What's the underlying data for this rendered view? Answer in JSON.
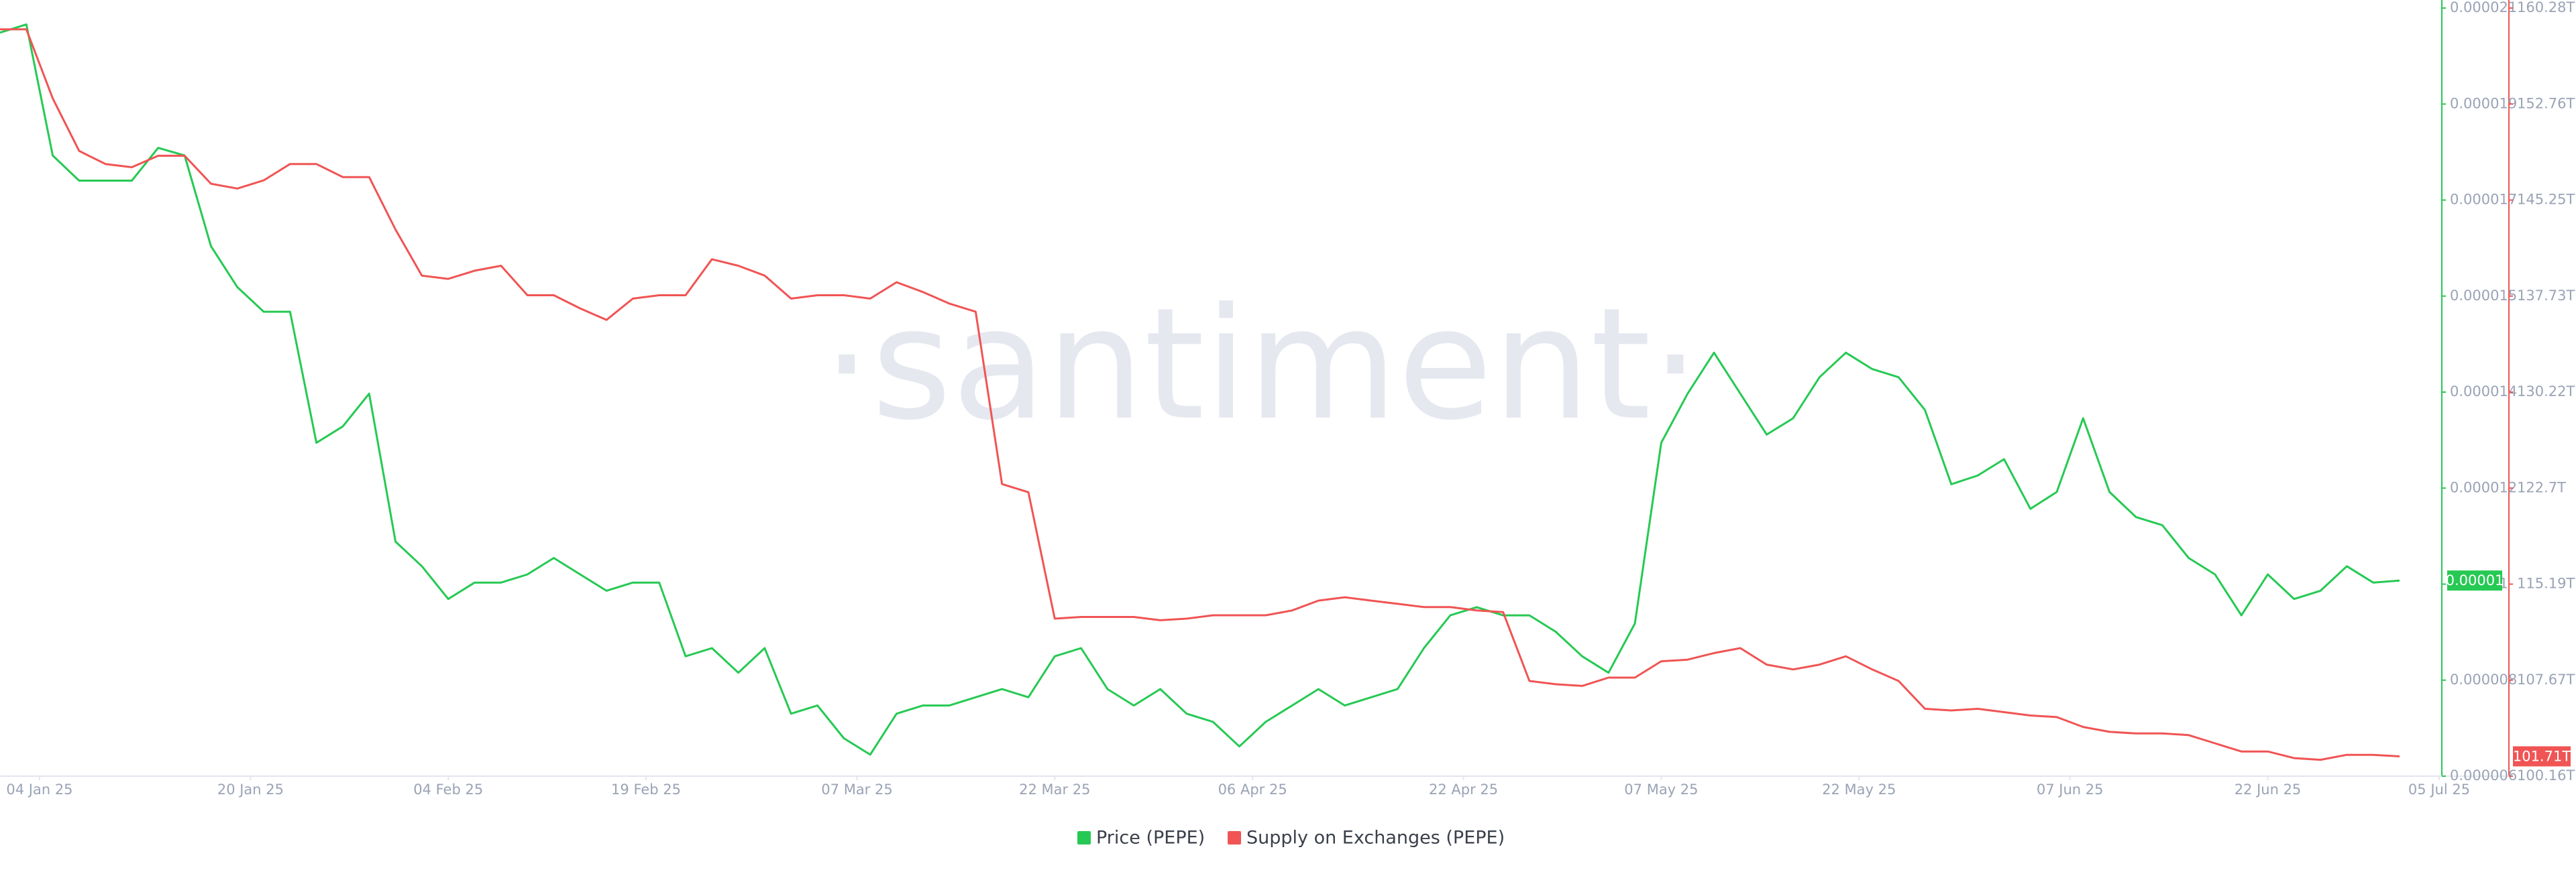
{
  "chart_data": {
    "type": "line",
    "watermark": "·santiment·",
    "x": [
      "2025-01-01",
      "2025-01-03",
      "2025-01-05",
      "2025-01-07",
      "2025-01-09",
      "2025-01-11",
      "2025-01-13",
      "2025-01-15",
      "2025-01-17",
      "2025-01-19",
      "2025-01-21",
      "2025-01-23",
      "2025-01-25",
      "2025-01-27",
      "2025-01-29",
      "2025-01-31",
      "2025-02-02",
      "2025-02-04",
      "2025-02-06",
      "2025-02-08",
      "2025-02-10",
      "2025-02-12",
      "2025-02-14",
      "2025-02-16",
      "2025-02-18",
      "2025-02-20",
      "2025-02-22",
      "2025-02-24",
      "2025-02-26",
      "2025-02-28",
      "2025-03-02",
      "2025-03-04",
      "2025-03-06",
      "2025-03-08",
      "2025-03-10",
      "2025-03-12",
      "2025-03-14",
      "2025-03-16",
      "2025-03-18",
      "2025-03-20",
      "2025-03-22",
      "2025-03-24",
      "2025-03-26",
      "2025-03-28",
      "2025-03-30",
      "2025-04-01",
      "2025-04-03",
      "2025-04-05",
      "2025-04-07",
      "2025-04-09",
      "2025-04-11",
      "2025-04-13",
      "2025-04-15",
      "2025-04-17",
      "2025-04-19",
      "2025-04-21",
      "2025-04-23",
      "2025-04-25",
      "2025-04-27",
      "2025-04-29",
      "2025-05-01",
      "2025-05-03",
      "2025-05-05",
      "2025-05-07",
      "2025-05-09",
      "2025-05-11",
      "2025-05-13",
      "2025-05-15",
      "2025-05-17",
      "2025-05-19",
      "2025-05-21",
      "2025-05-23",
      "2025-05-25",
      "2025-05-27",
      "2025-05-29",
      "2025-05-31",
      "2025-06-02",
      "2025-06-04",
      "2025-06-06",
      "2025-06-08",
      "2025-06-10",
      "2025-06-12",
      "2025-06-14",
      "2025-06-16",
      "2025-06-18",
      "2025-06-20",
      "2025-06-22",
      "2025-06-24",
      "2025-06-26",
      "2025-06-28",
      "2025-06-30",
      "2025-07-02"
    ],
    "xlim": [
      "2025-01-01",
      "2025-07-05"
    ],
    "xticks": [
      {
        "value": "2025-01-04",
        "label": "04 Jan 25"
      },
      {
        "value": "2025-01-20",
        "label": "20 Jan 25"
      },
      {
        "value": "2025-02-04",
        "label": "04 Feb 25"
      },
      {
        "value": "2025-02-19",
        "label": "19 Feb 25"
      },
      {
        "value": "2025-03-07",
        "label": "07 Mar 25"
      },
      {
        "value": "2025-03-22",
        "label": "22 Mar 25"
      },
      {
        "value": "2025-04-06",
        "label": "06 Apr 25"
      },
      {
        "value": "2025-04-22",
        "label": "22 Apr 25"
      },
      {
        "value": "2025-05-07",
        "label": "07 May 25"
      },
      {
        "value": "2025-05-22",
        "label": "22 May 25"
      },
      {
        "value": "2025-06-07",
        "label": "07 Jun 25"
      },
      {
        "value": "2025-06-22",
        "label": "22 Jun 25"
      },
      {
        "value": "2025-07-05",
        "label": "05 Jul 25"
      }
    ],
    "ylim": [
      6e-06,
      2.1e-05
    ],
    "yticks": [
      6e-06,
      {
        "value": 7.875e-06,
        "label": "0.000008"
      },
      {
        "value": 9.75e-06,
        "label": "0.00001"
      },
      {
        "value": 1.1625e-05,
        "label": "0.000012"
      },
      {
        "value": 1.35e-05,
        "label": "0.000014"
      },
      {
        "value": 1.5375e-05,
        "label": "0.000015"
      },
      {
        "value": 1.725e-05,
        "label": "0.000017"
      },
      {
        "value": 1.9125e-05,
        "label": "0.000019"
      },
      2.1e-05
    ],
    "y2lim": [
      100.16,
      160.28
    ],
    "y2ticks": [
      {
        "value": 100.16,
        "label": "100.16T"
      },
      {
        "value": 107.675,
        "label": "107.67T"
      },
      {
        "value": 115.19,
        "label": "115.19T"
      },
      {
        "value": 122.705,
        "label": "122.7T"
      },
      {
        "value": 130.22,
        "label": "130.22T"
      },
      {
        "value": 137.735,
        "label": "137.73T"
      },
      {
        "value": 145.25,
        "label": "145.25T"
      },
      {
        "value": 152.765,
        "label": "152.76T"
      },
      {
        "value": 160.28,
        "label": "160.28T"
      }
    ],
    "grid": false,
    "legend": "bottom",
    "series": [
      {
        "name": "Price (PEPE)",
        "color": "#26c953",
        "last_label": "0.00001",
        "values": [
          2.052e-05,
          2.068e-05,
          1.812e-05,
          1.763e-05,
          1.763e-05,
          1.763e-05,
          1.827e-05,
          1.812e-05,
          1.635e-05,
          1.555e-05,
          1.507e-05,
          1.507e-05,
          1.251e-05,
          1.283e-05,
          1.347e-05,
          1.058e-05,
          1.01e-05,
          9.46e-06,
          9.78e-06,
          9.78e-06,
          9.94e-06,
          1.026e-05,
          9.94e-06,
          9.62e-06,
          9.78e-06,
          9.78e-06,
          8.34e-06,
          8.5e-06,
          8.02e-06,
          8.5e-06,
          7.22e-06,
          7.38e-06,
          6.74e-06,
          6.42e-06,
          7.22e-06,
          7.38e-06,
          7.38e-06,
          7.54e-06,
          7.7e-06,
          7.54e-06,
          8.34e-06,
          8.5e-06,
          7.7e-06,
          7.38e-06,
          7.7e-06,
          7.22e-06,
          7.06e-06,
          6.58e-06,
          7.06e-06,
          7.38e-06,
          7.7e-06,
          7.38e-06,
          7.54e-06,
          7.7e-06,
          8.5e-06,
          9.14e-06,
          9.3e-06,
          9.14e-06,
          9.14e-06,
          8.82e-06,
          8.34e-06,
          8.02e-06,
          8.98e-06,
          1.251e-05,
          1.347e-05,
          1.427e-05,
          1.347e-05,
          1.267e-05,
          1.299e-05,
          1.379e-05,
          1.427e-05,
          1.395e-05,
          1.379e-05,
          1.315e-05,
          1.17e-05,
          1.187e-05,
          1.219e-05,
          1.122e-05,
          1.155e-05,
          1.299e-05,
          1.155e-05,
          1.106e-05,
          1.09e-05,
          1.026e-05,
          9.94e-06,
          9.14e-06,
          9.94e-06,
          9.46e-06,
          9.62e-06,
          1.01e-05,
          9.78e-06,
          9.82e-06
        ]
      },
      {
        "name": "Supply on Exchanges (PEPE)",
        "color": "#f05454",
        "axis": "y2",
        "last_label": "101.71T",
        "values": [
          158.61,
          158.61,
          153.21,
          149.1,
          148.07,
          147.82,
          148.72,
          148.72,
          146.53,
          146.15,
          146.79,
          148.07,
          148.07,
          147.05,
          147.05,
          142.94,
          139.34,
          139.08,
          139.72,
          140.11,
          137.8,
          137.8,
          136.77,
          135.87,
          137.54,
          137.8,
          137.8,
          140.62,
          140.11,
          139.34,
          137.54,
          137.8,
          137.8,
          137.54,
          138.82,
          138.05,
          137.15,
          136.51,
          123.02,
          122.38,
          112.49,
          112.62,
          112.62,
          112.62,
          112.36,
          112.49,
          112.75,
          112.75,
          112.75,
          113.13,
          113.9,
          114.16,
          113.9,
          113.65,
          113.39,
          113.39,
          113.13,
          113.0,
          107.61,
          107.35,
          107.22,
          107.87,
          107.87,
          109.15,
          109.28,
          109.79,
          110.18,
          108.89,
          108.51,
          108.89,
          109.54,
          108.51,
          107.61,
          105.43,
          105.3,
          105.43,
          105.17,
          104.91,
          104.78,
          104.01,
          103.63,
          103.5,
          103.5,
          103.37,
          102.73,
          102.09,
          102.09,
          101.57,
          101.44,
          101.83,
          101.83,
          101.71
        ]
      }
    ]
  }
}
